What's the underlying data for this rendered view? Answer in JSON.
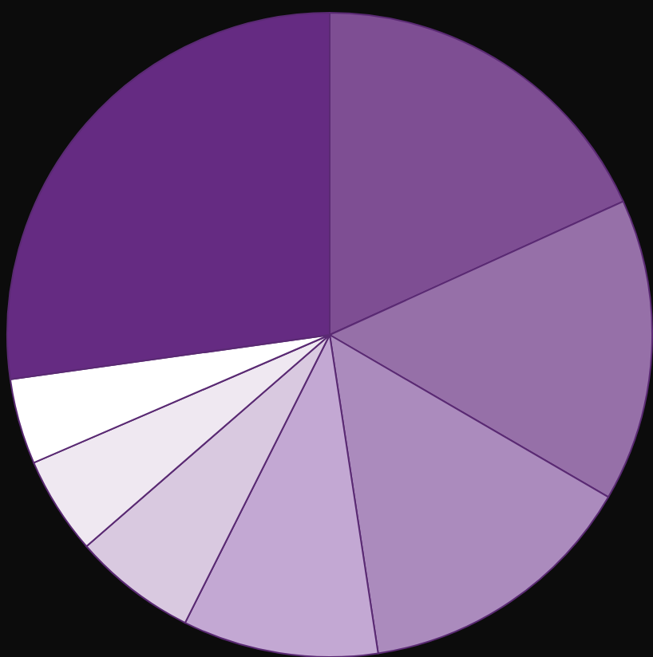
{
  "chart_data": {
    "type": "pie",
    "categories": [
      null,
      null,
      null,
      null,
      null,
      null,
      null,
      null
    ],
    "values": [
      18.2,
      15.2,
      14.2,
      9.8,
      6.2,
      4.9,
      4.3,
      27.2
    ],
    "colors": [
      "#7e4e93",
      "#9670a8",
      "#ab8bbd",
      "#c3a8d3",
      "#d9c9e0",
      "#efe8f1",
      "#ffffff",
      "#652b82"
    ],
    "legend": false
  }
}
